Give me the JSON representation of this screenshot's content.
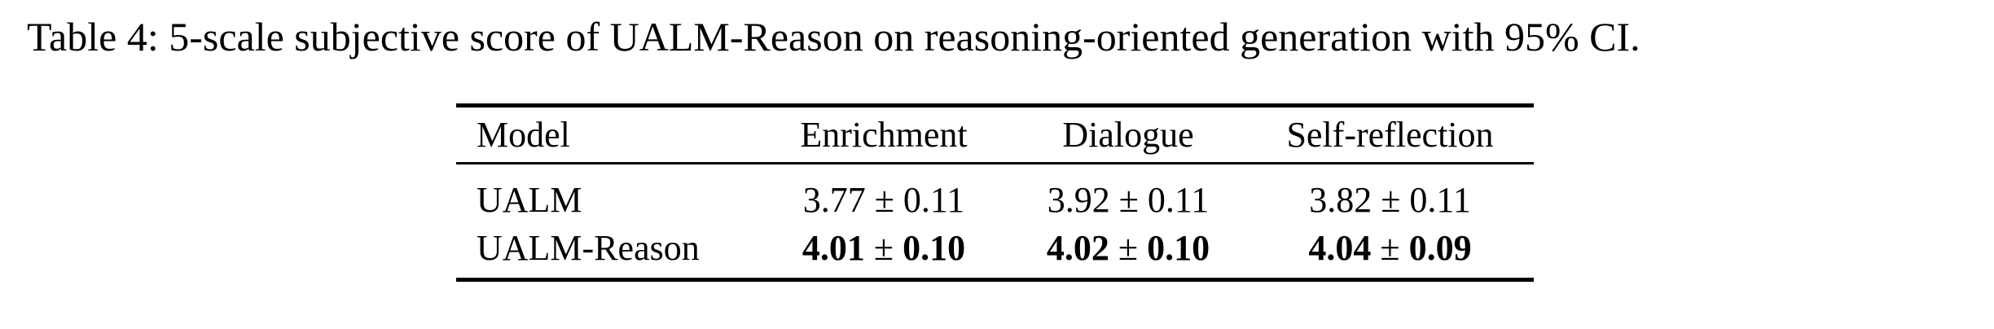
{
  "page": {
    "background": "#ffffff",
    "text_color": "#000000"
  },
  "caption": "Table 4: 5-scale subjective score of UALM-Reason on reasoning-oriented generation with 95% CI.",
  "table": {
    "columns": [
      "Model",
      "Enrichment",
      "Dialogue",
      "Self-reflection"
    ],
    "pm_symbol": "±",
    "rows": [
      {
        "model": "UALM",
        "bold": false,
        "enrichment": {
          "score": "3.77",
          "ci": "0.11"
        },
        "dialogue": {
          "score": "3.92",
          "ci": "0.11"
        },
        "self_reflection": {
          "score": "3.82",
          "ci": "0.11"
        }
      },
      {
        "model": "UALM-Reason",
        "bold": true,
        "enrichment": {
          "score": "4.01",
          "ci": "0.10"
        },
        "dialogue": {
          "score": "4.02",
          "ci": "0.10"
        },
        "self_reflection": {
          "score": "4.04",
          "ci": "0.09"
        }
      }
    ]
  }
}
